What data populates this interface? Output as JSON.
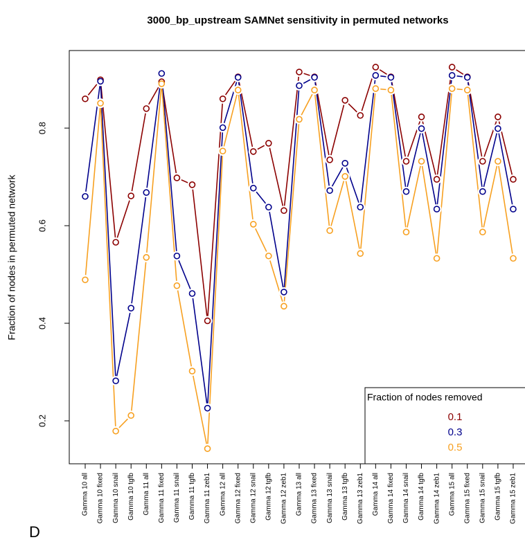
{
  "chart_data": {
    "type": "line",
    "title": "3000_bp_upstream SAMNet sensitivity in permuted networks",
    "y_label": "Fraction of nodes in permuted network",
    "panel_label": "D",
    "categories": [
      "Gamma 10 all",
      "Gamma 10 fixed",
      "Gamma 10 snail",
      "Gamma 10 tgfb",
      "Gamma 11 all",
      "Gamma 11 fixed",
      "Gamma 11 snail",
      "Gamma 11 tgfb",
      "Gamma 11 zeb1",
      "Gamma 12 all",
      "Gamma 12 fixed",
      "Gamma 12 snail",
      "Gamma 12 tgfb",
      "Gamma 12 zeb1",
      "Gamma 13 all",
      "Gamma 13 fixed",
      "Gamma 13 snail",
      "Gamma 13 tgfb",
      "Gamma 13 zeb1",
      "Gamma 14 all",
      "Gamma 14 fixed",
      "Gamma 14 snail",
      "Gamma 14 tgfb",
      "Gamma 14 zeb1",
      "Gamma 15 all",
      "Gamma 15 fixed",
      "Gamma 15 snail",
      "Gamma 15 tgfb",
      "Gamma 15 zeb1"
    ],
    "series": [
      {
        "name": "0.1",
        "color": "#8b0000",
        "values": [
          0.86,
          0.899,
          0.566,
          0.661,
          0.84,
          0.895,
          0.698,
          0.684,
          0.405,
          0.86,
          0.905,
          0.752,
          0.769,
          0.631,
          0.915,
          0.905,
          0.735,
          0.857,
          0.826,
          0.925,
          0.905,
          0.732,
          0.823,
          0.695,
          0.925,
          0.905,
          0.732,
          0.823,
          0.695
        ]
      },
      {
        "name": "0.3",
        "color": "#00008b",
        "values": [
          0.66,
          0.896,
          0.282,
          0.431,
          0.668,
          0.912,
          0.538,
          0.461,
          0.226,
          0.801,
          0.904,
          0.677,
          0.638,
          0.464,
          0.887,
          0.904,
          0.672,
          0.728,
          0.638,
          0.908,
          0.904,
          0.67,
          0.799,
          0.634,
          0.908,
          0.904,
          0.67,
          0.799,
          0.634
        ]
      },
      {
        "name": "0.5",
        "color": "#f7a020",
        "values": [
          0.489,
          0.851,
          0.179,
          0.211,
          0.535,
          0.891,
          0.477,
          0.302,
          0.143,
          0.753,
          0.878,
          0.603,
          0.538,
          0.435,
          0.818,
          0.878,
          0.59,
          0.701,
          0.543,
          0.881,
          0.878,
          0.587,
          0.732,
          0.533,
          0.881,
          0.878,
          0.587,
          0.732,
          0.533
        ]
      }
    ],
    "legend_title": "Fraction of nodes removed",
    "legend_position": "bottom right",
    "ylim": [
      0.112,
      0.959
    ],
    "yticks": [
      0.2,
      0.4,
      0.6,
      0.8
    ]
  }
}
